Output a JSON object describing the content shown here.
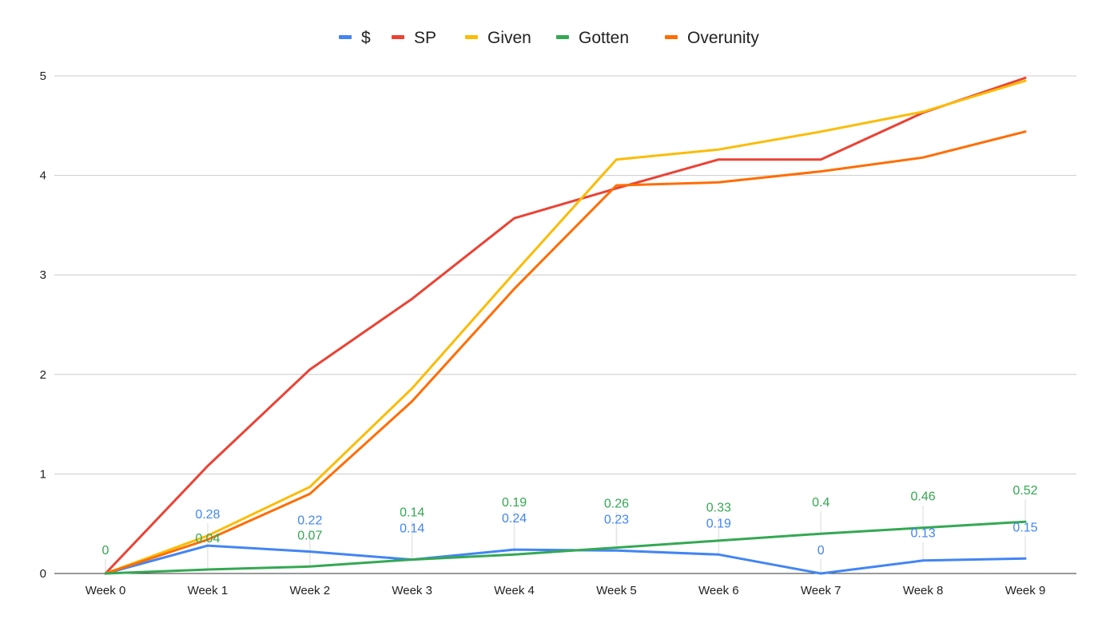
{
  "chart_data": {
    "type": "line",
    "title": "",
    "xlabel": "",
    "ylabel": "",
    "legend_position": "top-center",
    "grid": true,
    "ylim": [
      0,
      5
    ],
    "yticks": [
      "0",
      "1",
      "2",
      "3",
      "4",
      "5"
    ],
    "categories": [
      "Week 0",
      "Week 1",
      "Week 2",
      "Week 3",
      "Week 4",
      "Week 5",
      "Week 6",
      "Week 7",
      "Week 8",
      "Week 9"
    ],
    "series": [
      {
        "name": "$",
        "color": "#4285F4",
        "values": [
          0,
          0.28,
          0.22,
          0.14,
          0.24,
          0.23,
          0.19,
          0,
          0.13,
          0.15
        ],
        "data_labels": [
          "",
          "0.28",
          "0.22",
          "0.14",
          "0.24",
          "0.23",
          "0.19",
          "0",
          "0.13",
          "0.15"
        ]
      },
      {
        "name": "SP",
        "color": "#EA4335",
        "values": [
          0,
          1.08,
          2.05,
          2.76,
          3.57,
          3.87,
          4.16,
          4.16,
          4.63,
          4.98
        ],
        "data_labels": []
      },
      {
        "name": "Given",
        "color": "#FBBC04",
        "values": [
          0,
          0.38,
          0.87,
          1.86,
          3.02,
          4.16,
          4.26,
          4.44,
          4.64,
          4.95
        ],
        "data_labels": []
      },
      {
        "name": "Gotten",
        "color": "#34A853",
        "values": [
          0,
          0.04,
          0.07,
          0.14,
          0.19,
          0.26,
          0.33,
          0.4,
          0.46,
          0.52
        ],
        "data_labels": [
          "0",
          "0.04",
          "0.07",
          "0.14",
          "0.19",
          "0.26",
          "0.33",
          "0.4",
          "0.46",
          "0.52"
        ]
      },
      {
        "name": "Overunity",
        "color": "#FF6D01",
        "values": [
          0,
          0.34,
          0.8,
          1.73,
          2.86,
          3.9,
          3.93,
          4.04,
          4.18,
          4.44
        ],
        "data_labels": []
      }
    ]
  }
}
